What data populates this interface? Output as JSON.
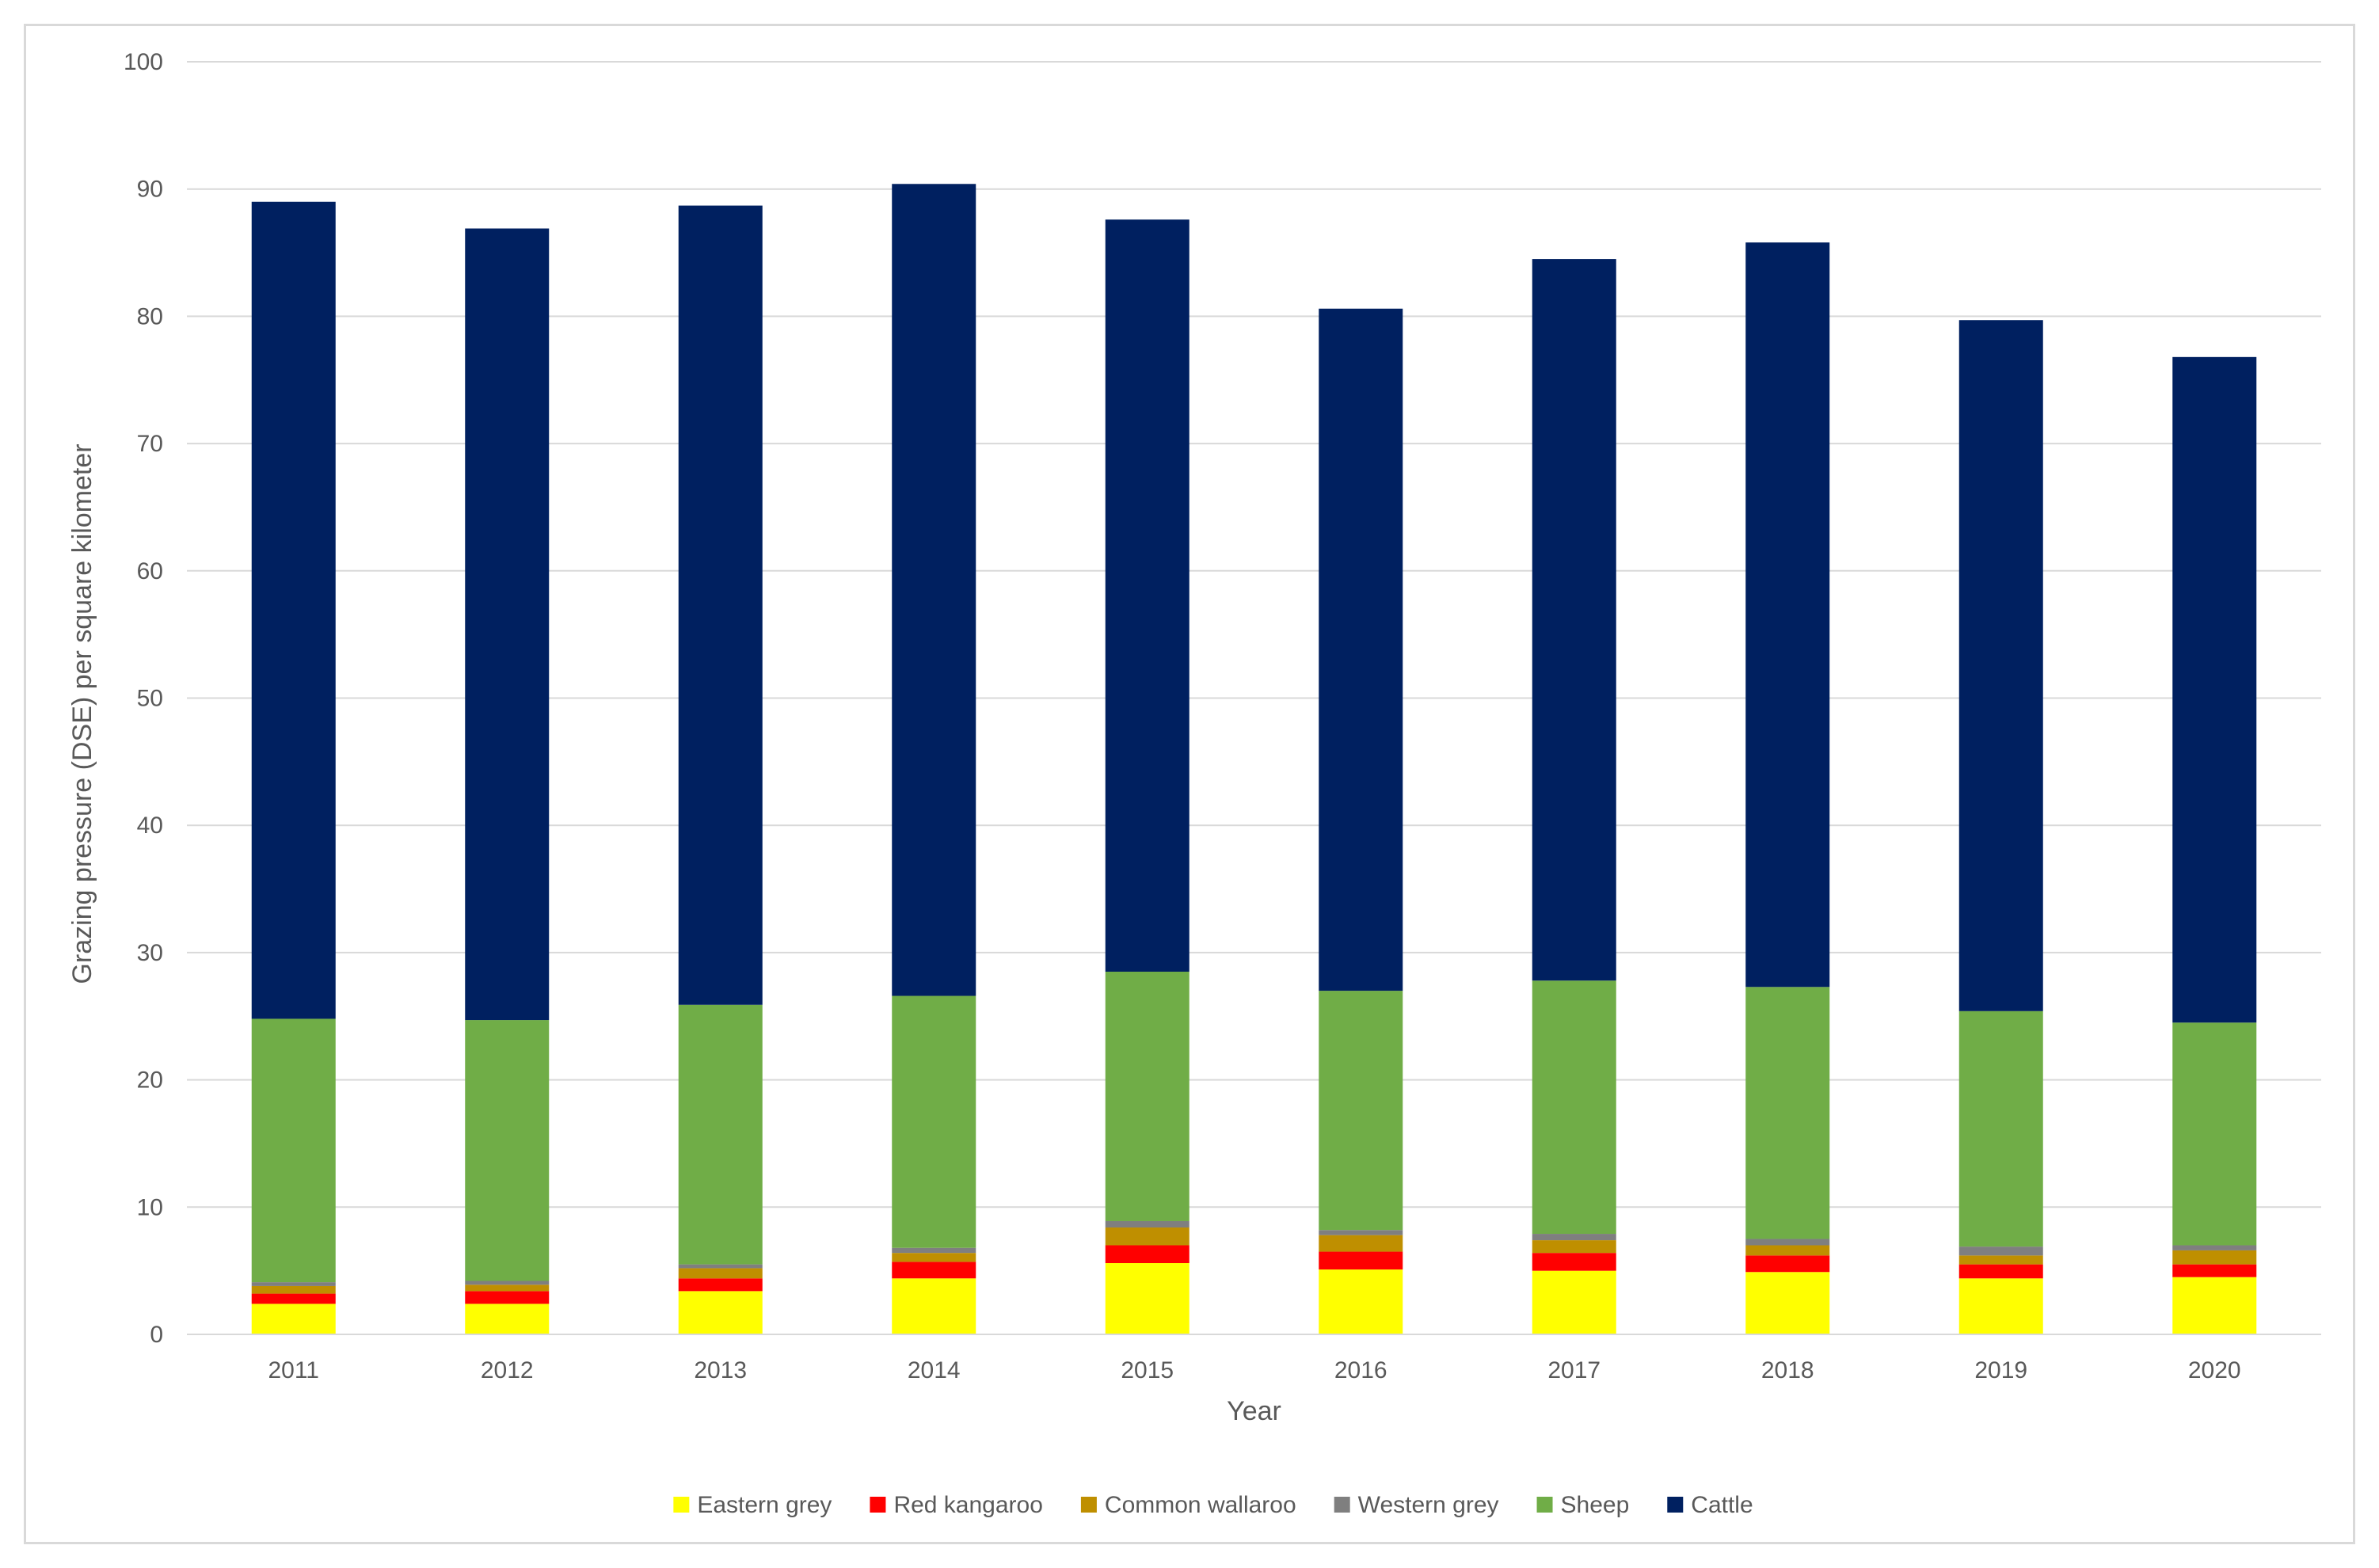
{
  "chart_data": {
    "type": "bar",
    "stacked": true,
    "title": "",
    "xlabel": "Year",
    "ylabel": "Grazing pressure (DSE) per square kilometer",
    "ylim": [
      0,
      100
    ],
    "yticks": [
      0,
      10,
      20,
      30,
      40,
      50,
      60,
      70,
      80,
      90,
      100
    ],
    "grid": true,
    "legend_position": "bottom",
    "categories": [
      "2011",
      "2012",
      "2013",
      "2014",
      "2015",
      "2016",
      "2017",
      "2018",
      "2019",
      "2020"
    ],
    "series": [
      {
        "name": "Eastern grey",
        "color": "#FFFF00",
        "values": [
          2.4,
          2.4,
          3.4,
          4.4,
          5.6,
          5.1,
          5.0,
          4.9,
          4.4,
          4.5
        ]
      },
      {
        "name": "Red kangaroo",
        "color": "#FF0000",
        "values": [
          0.8,
          1.0,
          1.0,
          1.3,
          1.4,
          1.4,
          1.4,
          1.3,
          1.1,
          1.0
        ]
      },
      {
        "name": "Common wallaroo",
        "color": "#BF8F00",
        "values": [
          0.6,
          0.5,
          0.8,
          0.7,
          1.4,
          1.3,
          1.0,
          0.8,
          0.7,
          1.1
        ]
      },
      {
        "name": "Western grey",
        "color": "#7F7F7F",
        "values": [
          0.3,
          0.3,
          0.3,
          0.4,
          0.5,
          0.4,
          0.5,
          0.5,
          0.7,
          0.4
        ]
      },
      {
        "name": "Sheep",
        "color": "#70AD47",
        "values": [
          20.7,
          20.5,
          20.4,
          19.8,
          19.6,
          18.8,
          19.9,
          19.8,
          18.5,
          17.5
        ]
      },
      {
        "name": "Cattle",
        "color": "#002060",
        "values": [
          64.2,
          62.2,
          62.8,
          63.8,
          59.1,
          53.6,
          56.7,
          58.5,
          54.3,
          52.3
        ]
      }
    ]
  }
}
